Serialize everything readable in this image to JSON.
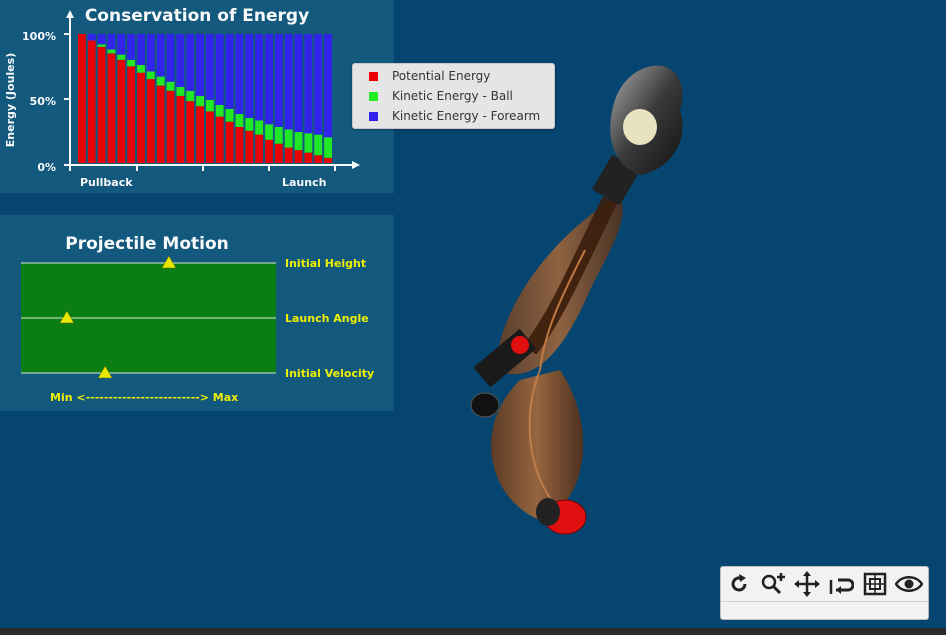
{
  "energy_panel": {
    "title": "Conservation of Energy",
    "ylabel": "Energy (Joules)",
    "yticks": [
      "100%",
      "50%",
      "0%"
    ],
    "xticks": [
      "Pullback",
      "Launch"
    ]
  },
  "chart_data": {
    "type": "bar",
    "stacked": true,
    "title": "Conservation of Energy",
    "ylabel": "Energy (Joules)",
    "ylim": [
      0,
      100
    ],
    "x_start_label": "Pullback",
    "x_end_label": "Launch",
    "series": [
      {
        "name": "Potential Energy",
        "color": "#ee0000",
        "values": [
          100,
          95,
          90,
          85,
          80,
          75,
          70,
          65,
          60,
          56,
          52,
          48,
          44,
          40,
          36,
          32,
          28,
          25,
          22,
          18,
          15,
          12,
          10,
          8,
          6,
          4
        ]
      },
      {
        "name": "Kinetic Energy - Ball",
        "color": "#22ee22",
        "values": [
          0,
          0,
          2,
          3,
          4,
          5,
          6,
          6,
          7,
          7,
          7,
          8,
          8,
          9,
          9,
          10,
          10,
          10,
          11,
          12,
          13,
          14,
          14,
          15,
          16,
          16
        ]
      },
      {
        "name": "Kinetic Energy - Forearm",
        "color": "#3322ee",
        "values": [
          0,
          5,
          8,
          12,
          16,
          20,
          24,
          29,
          33,
          37,
          41,
          44,
          48,
          51,
          55,
          58,
          62,
          65,
          67,
          70,
          72,
          74,
          76,
          77,
          78,
          80
        ]
      }
    ]
  },
  "legend": {
    "items": [
      {
        "label": "Potential Energy",
        "color": "#ee0000"
      },
      {
        "label": "Kinetic Energy - Ball",
        "color": "#22ee22"
      },
      {
        "label": "Kinetic Energy - Forearm",
        "color": "#3322ee"
      }
    ]
  },
  "projectile_panel": {
    "title": "Projectile Motion",
    "labels": {
      "initial_height": "Initial Height",
      "launch_angle": "Launch Angle",
      "initial_velocity": "Initial Velocity"
    },
    "scale_label": "Min <-------------------------> Max",
    "sliders": {
      "initial_height": 0.58,
      "launch_angle": 0.18,
      "initial_velocity": 0.33
    }
  },
  "toolbar": {
    "buttons": [
      {
        "name": "rotate-button",
        "icon": "rotate-icon"
      },
      {
        "name": "zoom-button",
        "icon": "zoom-in-icon"
      },
      {
        "name": "pan-button",
        "icon": "move-icon"
      },
      {
        "name": "reset-view-button",
        "icon": "undo-icon"
      },
      {
        "name": "fit-view-button",
        "icon": "fit-icon"
      },
      {
        "name": "visibility-button",
        "icon": "eye-icon"
      }
    ]
  }
}
